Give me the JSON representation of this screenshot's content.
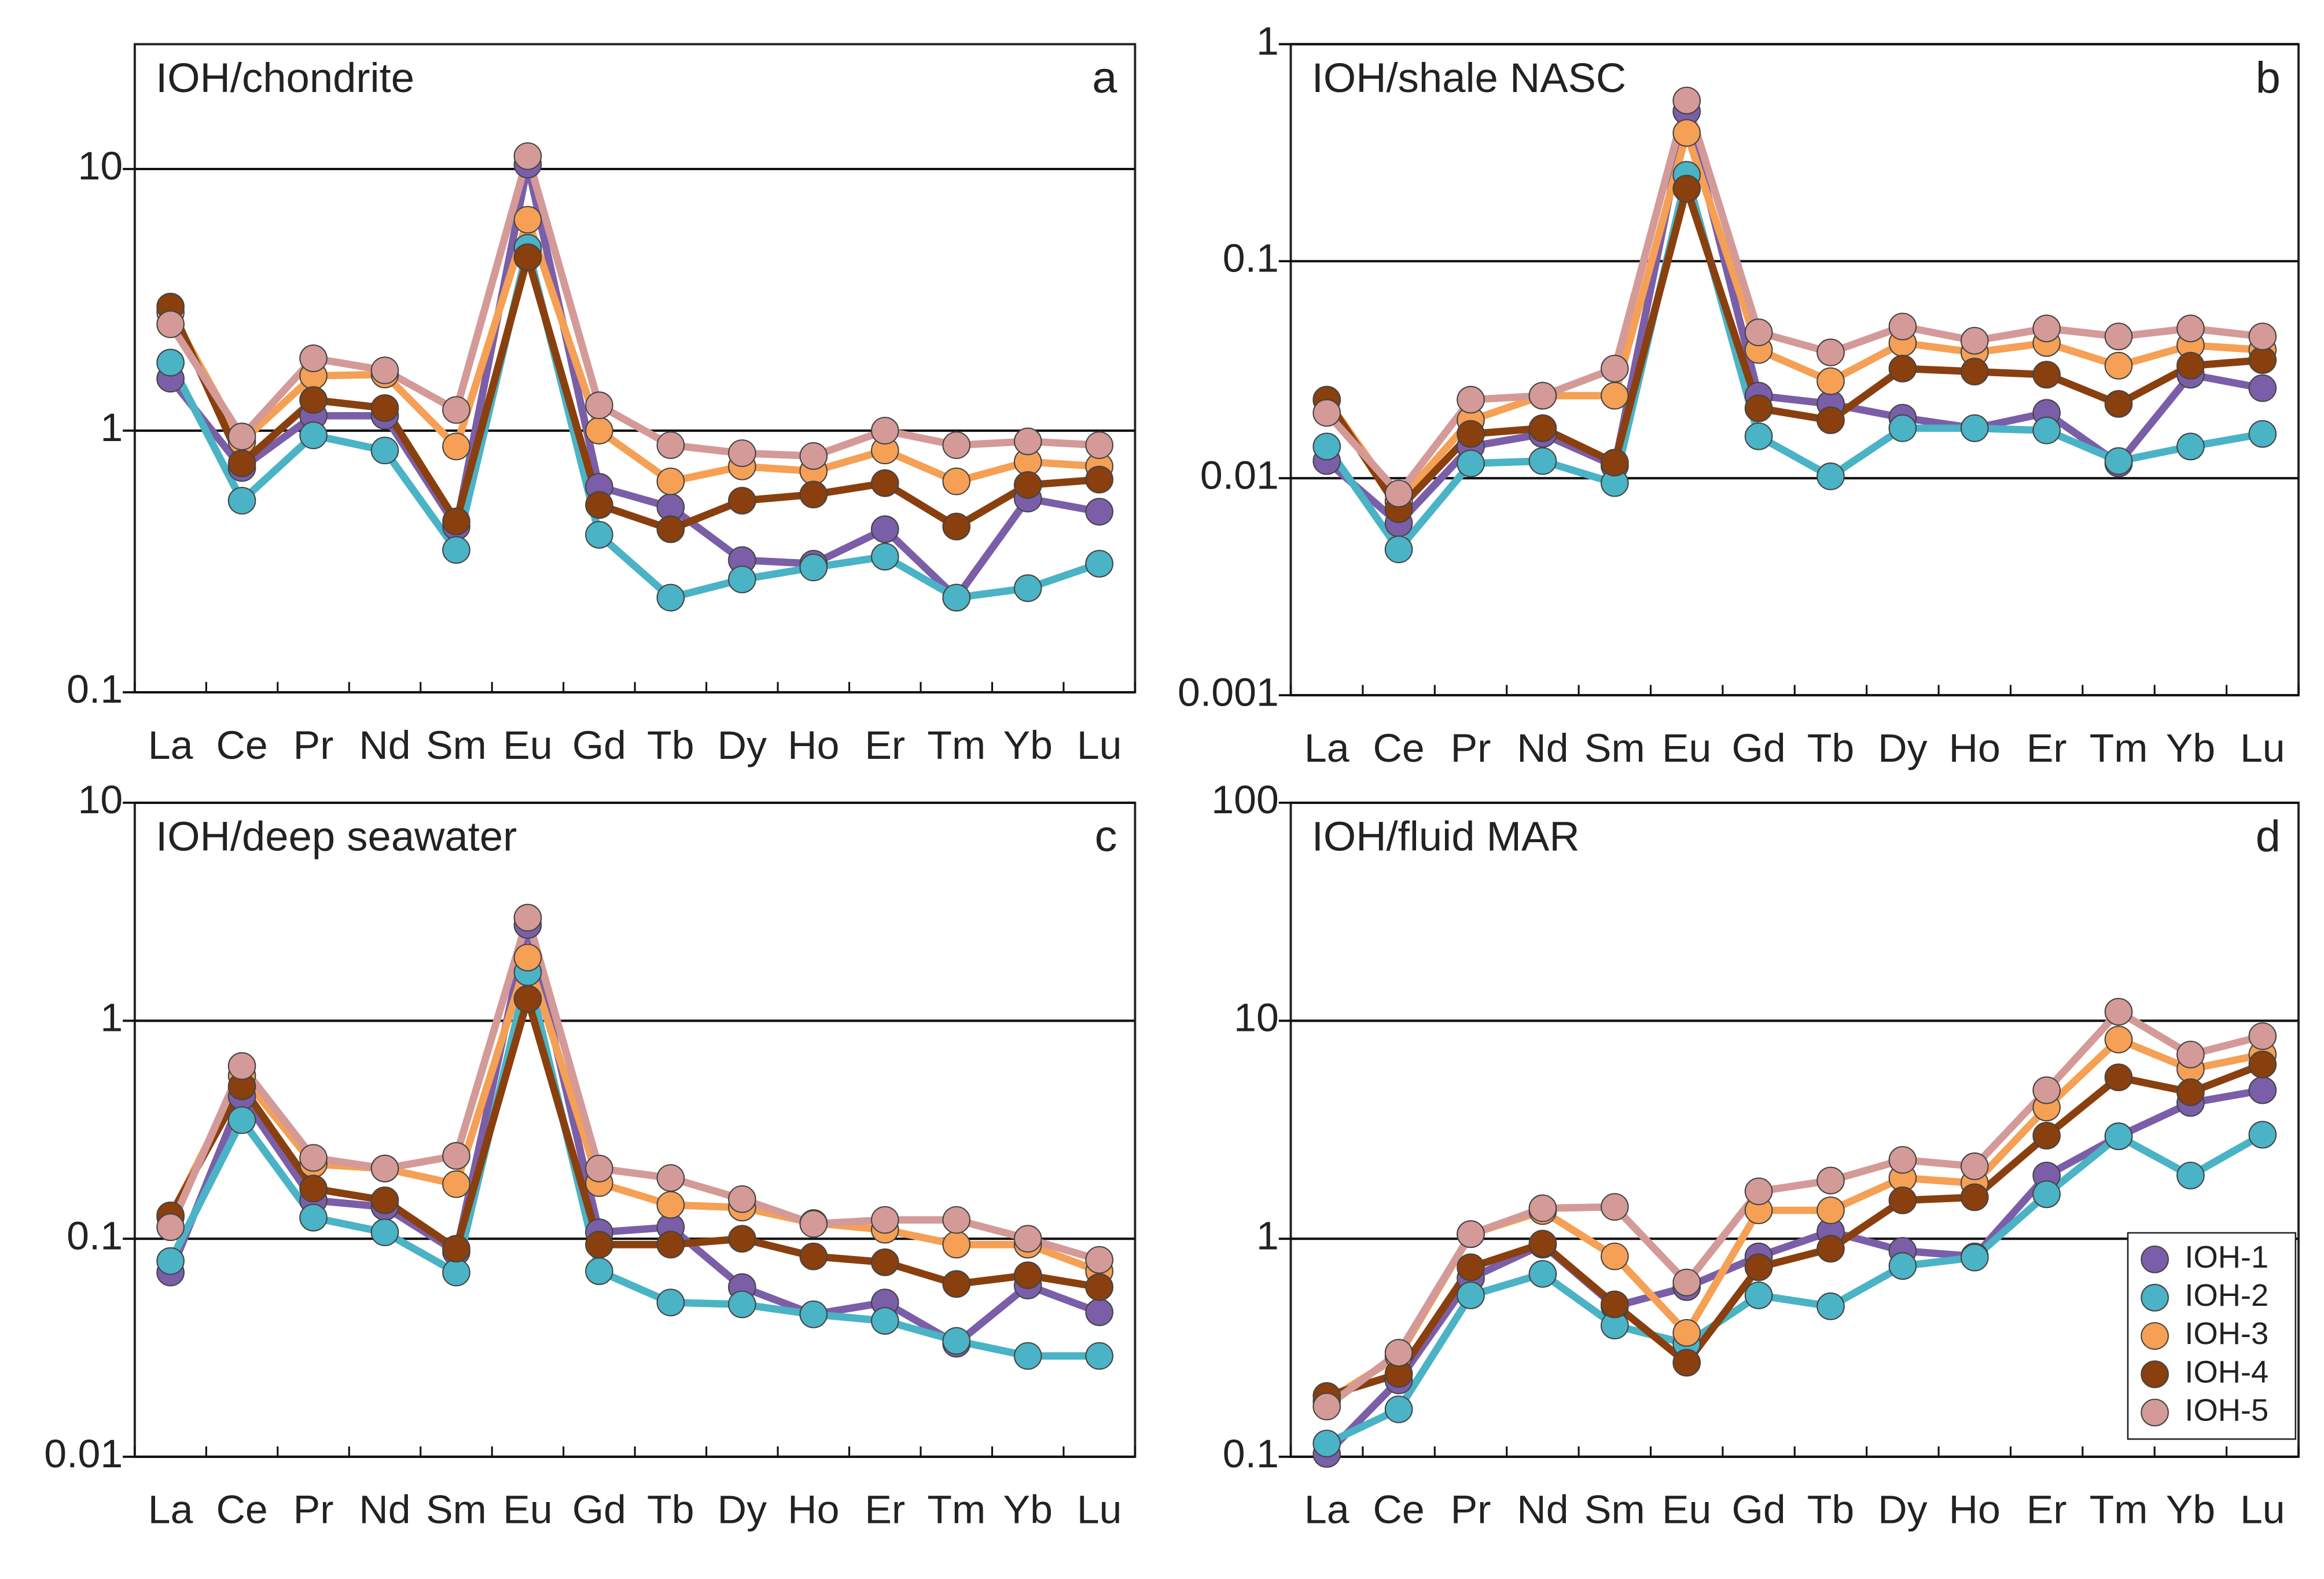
{
  "chart_data": [
    {
      "type": "line",
      "title": "IOH/chondrite",
      "label": "a",
      "log_scale": true,
      "grid": true,
      "categories": [
        "La",
        "Ce",
        "Pr",
        "Nd",
        "Sm",
        "Eu",
        "Gd",
        "Tb",
        "Dy",
        "Ho",
        "Er",
        "Tm",
        "Yb",
        "Lu"
      ],
      "ylim": [
        0.1,
        30
      ],
      "yticks": [
        0.1,
        1,
        10
      ],
      "series": [
        {
          "name": "IOH-1",
          "color": "#7b5ea8",
          "values": [
            1.58,
            0.72,
            1.14,
            1.14,
            0.43,
            10.4,
            0.61,
            0.51,
            0.32,
            0.31,
            0.42,
            0.23,
            0.55,
            0.49
          ]
        },
        {
          "name": "IOH-2",
          "color": "#4ab3c6",
          "values": [
            1.82,
            0.54,
            0.96,
            0.84,
            0.35,
            5,
            0.4,
            0.23,
            0.27,
            0.3,
            0.33,
            0.23,
            0.25,
            0.31
          ]
        },
        {
          "name": "IOH-3",
          "color": "#f5a054",
          "values": [
            2.83,
            0.91,
            1.62,
            1.64,
            0.87,
            6.4,
            1,
            0.64,
            0.73,
            0.7,
            0.84,
            0.64,
            0.76,
            0.73
          ]
        },
        {
          "name": "IOH-4",
          "color": "#8a3f0e",
          "values": [
            2.98,
            0.75,
            1.31,
            1.22,
            0.45,
            4.6,
            0.52,
            0.42,
            0.54,
            0.57,
            0.63,
            0.43,
            0.62,
            0.65
          ]
        },
        {
          "name": "IOH-5",
          "color": "#d49a98",
          "values": [
            2.55,
            0.95,
            1.89,
            1.7,
            1.2,
            11.2,
            1.25,
            0.88,
            0.82,
            0.8,
            1,
            0.88,
            0.91,
            0.88
          ]
        }
      ]
    },
    {
      "type": "line",
      "title": "IOH/shale NASC",
      "label": "b",
      "log_scale": true,
      "grid": true,
      "categories": [
        "La",
        "Ce",
        "Pr",
        "Nd",
        "Sm",
        "Eu",
        "Gd",
        "Tb",
        "Dy",
        "Ho",
        "Er",
        "Tm",
        "Yb",
        "Lu"
      ],
      "ylim": [
        0.001,
        1
      ],
      "yticks": [
        0.001,
        0.01,
        0.1,
        1
      ],
      "series": [
        {
          "name": "IOH-1",
          "color": "#7b5ea8",
          "values": [
            0.012,
            0.0062,
            0.014,
            0.016,
            0.0114,
            0.49,
            0.024,
            0.022,
            0.019,
            0.017,
            0.02,
            0.0117,
            0.03,
            0.026
          ]
        },
        {
          "name": "IOH-2",
          "color": "#4ab3c6",
          "values": [
            0.014,
            0.0047,
            0.0117,
            0.012,
            0.0095,
            0.25,
            0.0156,
            0.0102,
            0.017,
            0.017,
            0.0166,
            0.012,
            0.014,
            0.016
          ]
        },
        {
          "name": "IOH-3",
          "color": "#f5a054",
          "values": [
            0.023,
            0.0078,
            0.0185,
            0.024,
            0.024,
            0.39,
            0.039,
            0.028,
            0.042,
            0.038,
            0.042,
            0.033,
            0.041,
            0.039
          ]
        },
        {
          "name": "IOH-4",
          "color": "#8a3f0e",
          "values": [
            0.023,
            0.0072,
            0.016,
            0.017,
            0.0118,
            0.216,
            0.021,
            0.0185,
            0.032,
            0.031,
            0.03,
            0.022,
            0.033,
            0.035
          ]
        },
        {
          "name": "IOH-5",
          "color": "#d49a98",
          "values": [
            0.02,
            0.0085,
            0.023,
            0.024,
            0.032,
            0.55,
            0.047,
            0.038,
            0.05,
            0.043,
            0.049,
            0.045,
            0.049,
            0.045
          ]
        }
      ]
    },
    {
      "type": "line",
      "title": "IOH/deep seawater",
      "label": "c",
      "log_scale": true,
      "grid": true,
      "categories": [
        "La",
        "Ce",
        "Pr",
        "Nd",
        "Sm",
        "Eu",
        "Gd",
        "Tb",
        "Dy",
        "Ho",
        "Er",
        "Tm",
        "Yb",
        "Lu"
      ],
      "ylim": [
        0.01,
        10
      ],
      "yticks": [
        0.01,
        0.1,
        1,
        10
      ],
      "series": [
        {
          "name": "IOH-1",
          "color": "#7b5ea8",
          "values": [
            0.07,
            0.45,
            0.15,
            0.14,
            0.087,
            2.75,
            0.107,
            0.113,
            0.06,
            0.045,
            0.051,
            0.033,
            0.061,
            0.046
          ]
        },
        {
          "name": "IOH-2",
          "color": "#4ab3c6",
          "values": [
            0.079,
            0.35,
            0.125,
            0.107,
            0.07,
            1.67,
            0.071,
            0.051,
            0.05,
            0.045,
            0.042,
            0.034,
            0.029,
            0.029
          ]
        },
        {
          "name": "IOH-3",
          "color": "#f5a054",
          "values": [
            0.126,
            0.56,
            0.22,
            0.21,
            0.178,
            1.95,
            0.18,
            0.143,
            0.139,
            0.118,
            0.11,
            0.094,
            0.094,
            0.071
          ]
        },
        {
          "name": "IOH-4",
          "color": "#8a3f0e",
          "values": [
            0.128,
            0.5,
            0.17,
            0.15,
            0.09,
            1.26,
            0.094,
            0.094,
            0.1,
            0.083,
            0.078,
            0.062,
            0.068,
            0.06
          ]
        },
        {
          "name": "IOH-5",
          "color": "#d49a98",
          "values": [
            0.113,
            0.62,
            0.235,
            0.21,
            0.24,
            2.97,
            0.21,
            0.19,
            0.152,
            0.117,
            0.122,
            0.122,
            0.1,
            0.08
          ]
        }
      ]
    },
    {
      "type": "line",
      "title": "IOH/fluid MAR",
      "label": "d",
      "log_scale": true,
      "grid": true,
      "legend": "lower right",
      "categories": [
        "La",
        "Ce",
        "Pr",
        "Nd",
        "Sm",
        "Eu",
        "Gd",
        "Tb",
        "Dy",
        "Ho",
        "Er",
        "Tm",
        "Yb",
        "Lu"
      ],
      "ylim": [
        0.1,
        100
      ],
      "yticks": [
        0.1,
        1,
        10,
        100
      ],
      "series": [
        {
          "name": "IOH-1",
          "color": "#7b5ea8",
          "values": [
            0.103,
            0.224,
            0.66,
            0.94,
            0.49,
            0.6,
            0.83,
            1.08,
            0.88,
            0.83,
            1.95,
            2.95,
            4.2,
            4.8
          ]
        },
        {
          "name": "IOH-2",
          "color": "#4ab3c6",
          "values": [
            0.115,
            0.165,
            0.55,
            0.69,
            0.4,
            0.33,
            0.55,
            0.49,
            0.75,
            0.82,
            1.6,
            2.95,
            1.95,
            3
          ]
        },
        {
          "name": "IOH-3",
          "color": "#f5a054",
          "values": [
            0.18,
            0.29,
            1.05,
            1.34,
            0.83,
            0.37,
            1.35,
            1.35,
            1.9,
            1.8,
            4,
            8.2,
            6,
            7
          ]
        },
        {
          "name": "IOH-4",
          "color": "#8a3f0e",
          "values": [
            0.19,
            0.24,
            0.74,
            0.95,
            0.5,
            0.27,
            0.74,
            0.9,
            1.5,
            1.55,
            2.97,
            5.5,
            4.7,
            6.3
          ]
        },
        {
          "name": "IOH-5",
          "color": "#d49a98",
          "values": [
            0.17,
            0.3,
            1.05,
            1.38,
            1.4,
            0.63,
            1.65,
            1.85,
            2.3,
            2.15,
            4.8,
            11,
            7,
            8.5
          ]
        }
      ]
    }
  ]
}
